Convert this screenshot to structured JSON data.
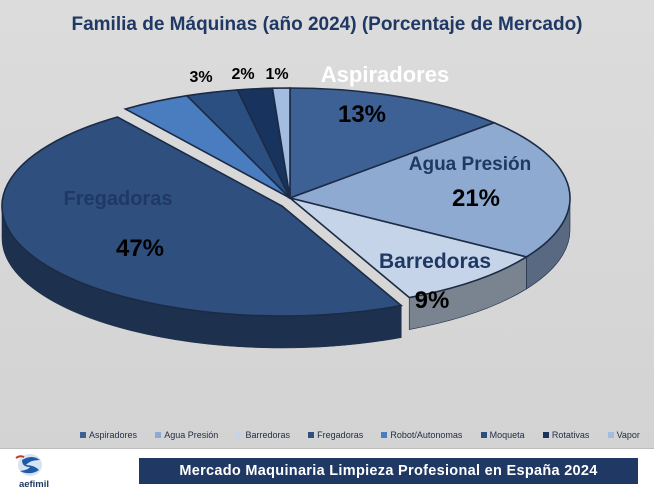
{
  "chart_data": {
    "type": "pie",
    "title": "Familia de Máquinas (año 2024) (Porcentaje  de Mercado)",
    "legend_position": "bottom",
    "slices": [
      {
        "name": "Aspiradores",
        "value": 13,
        "label": "13%",
        "color": "#3d6194"
      },
      {
        "name": "Agua Presión",
        "value": 21,
        "label": "21%",
        "color": "#8eaad0"
      },
      {
        "name": "Barredoras",
        "value": 9,
        "label": "9%",
        "color": "#c5d4e8"
      },
      {
        "name": "Fregadoras",
        "value": 47,
        "label": "47%",
        "color": "#2f4f7f"
      },
      {
        "name": "Robot/Autonomas",
        "value": 4,
        "label": "",
        "color": "#4a7cc0"
      },
      {
        "name": "Moqueta",
        "value": 3,
        "label": "3%",
        "color": "#2c4f82"
      },
      {
        "name": "Rotativas",
        "value": 2,
        "label": "2%",
        "color": "#17335e"
      },
      {
        "name": "Vapor",
        "value": 1,
        "label": "1%",
        "color": "#a3bde0"
      }
    ]
  },
  "footer": {
    "banner_text": "Mercado Maquinaria Limpieza Profesional en España 2024",
    "logo_text": "aefimil"
  }
}
